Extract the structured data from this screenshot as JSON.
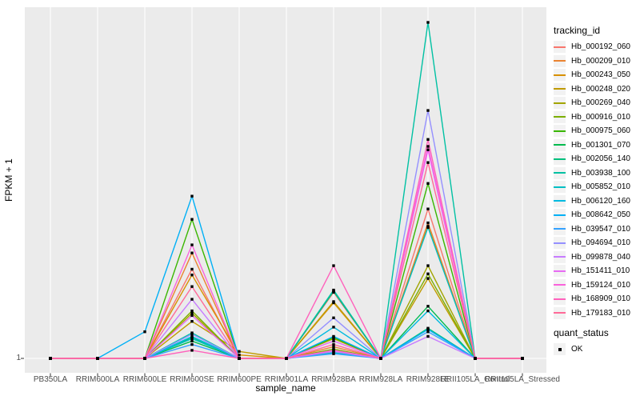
{
  "chart_data": {
    "type": "line",
    "title": "",
    "xlabel": "sample_name",
    "ylabel": "FPKM + 1",
    "y_ticks": [
      {
        "label": "1",
        "value": 1
      }
    ],
    "y_axis_range": [
      1,
      30
    ],
    "grid": "major vertical per category, horizontal at y=1",
    "legend_position": "right",
    "legend_titles": {
      "series": "tracking_id",
      "points": "quant_status"
    },
    "point_legend": [
      {
        "label": "OK",
        "color": "#000000"
      }
    ],
    "categories": [
      "PB350LA",
      "RRIM600LA",
      "RRIM600LE",
      "RRIM600SE",
      "RRIM600PE",
      "RRIM901LA",
      "RRIM928BA",
      "RRIM928LA",
      "RRIM928LE",
      "RRII105LA_Control",
      "RRII105LA_Stressed"
    ],
    "series": [
      {
        "name": "Hb_000192_060",
        "color": "#F8766D",
        "values": [
          1,
          1,
          1,
          8.7,
          1,
          1,
          6.7,
          1,
          13.9,
          1,
          1
        ]
      },
      {
        "name": "Hb_000209_010",
        "color": "#EA8331",
        "values": [
          1,
          1,
          1,
          10.1,
          1,
          1,
          2.0,
          1,
          12.7,
          1,
          1
        ]
      },
      {
        "name": "Hb_000243_050",
        "color": "#D89000",
        "values": [
          1,
          1,
          1,
          8.2,
          1.3,
          1,
          5.8,
          1,
          12.4,
          1,
          1
        ]
      },
      {
        "name": "Hb_000248_020",
        "color": "#C09B00",
        "values": [
          1,
          1,
          1,
          4.2,
          1.6,
          1,
          5.9,
          1,
          7.9,
          1,
          1
        ]
      },
      {
        "name": "Hb_000269_040",
        "color": "#A3A500",
        "values": [
          1,
          1,
          1,
          4.9,
          1,
          1,
          2.7,
          1,
          9.0,
          1,
          1
        ]
      },
      {
        "name": "Hb_000916_010",
        "color": "#7CAE00",
        "values": [
          1,
          1,
          1,
          5.1,
          1,
          1,
          1.8,
          1,
          8.3,
          1,
          1
        ]
      },
      {
        "name": "Hb_000975_060",
        "color": "#39B600",
        "values": [
          1,
          1,
          1,
          13.0,
          1,
          1,
          2.8,
          1,
          16.1,
          1,
          1
        ]
      },
      {
        "name": "Hb_001301_070",
        "color": "#00BB4E",
        "values": [
          1,
          1,
          1,
          2.5,
          1,
          1,
          6.8,
          1,
          5.5,
          1,
          1
        ]
      },
      {
        "name": "Hb_002056_140",
        "color": "#00BF7D",
        "values": [
          1,
          1,
          1,
          2.8,
          1,
          1,
          6.8,
          1,
          3.6,
          1,
          1
        ]
      },
      {
        "name": "Hb_003938_100",
        "color": "#00C1A3",
        "values": [
          1,
          1,
          1,
          3.2,
          1,
          1,
          6.9,
          1,
          30.0,
          1,
          1
        ]
      },
      {
        "name": "Hb_005852_010",
        "color": "#00BFC4",
        "values": [
          1,
          1,
          1,
          2.7,
          1,
          1,
          1.5,
          1,
          12.3,
          1,
          1
        ]
      },
      {
        "name": "Hb_006120_160",
        "color": "#00BAE0",
        "values": [
          1,
          1,
          1,
          2.9,
          1,
          1,
          3.7,
          1,
          5.1,
          1,
          1
        ]
      },
      {
        "name": "Hb_008642_050",
        "color": "#00B0F6",
        "values": [
          1,
          1,
          3.3,
          15.0,
          1,
          1,
          2.9,
          1,
          3.5,
          1,
          1
        ]
      },
      {
        "name": "Hb_039547_010",
        "color": "#35A2FF",
        "values": [
          1,
          1,
          1,
          2.2,
          1,
          1,
          1.4,
          1,
          3.3,
          1,
          1
        ]
      },
      {
        "name": "Hb_094694_010",
        "color": "#9590FF",
        "values": [
          1,
          1,
          1,
          3.1,
          1,
          1,
          4.5,
          1,
          22.4,
          1,
          1
        ]
      },
      {
        "name": "Hb_099878_040",
        "color": "#C77CFF",
        "values": [
          1,
          1,
          1,
          6.1,
          1,
          1,
          1.6,
          1,
          2.9,
          1,
          1
        ]
      },
      {
        "name": "Hb_151411_010",
        "color": "#E76BF3",
        "values": [
          1,
          1,
          1,
          4.7,
          1,
          1,
          2.5,
          1,
          19.0,
          1,
          1
        ]
      },
      {
        "name": "Hb_159124_010",
        "color": "#FA62DB",
        "values": [
          1,
          1,
          1,
          10.8,
          1,
          1,
          1.7,
          1,
          19.3,
          1,
          1
        ]
      },
      {
        "name": "Hb_168909_010",
        "color": "#FF62BC",
        "values": [
          1,
          1,
          1,
          1.7,
          1,
          1,
          9.0,
          1,
          19.9,
          1,
          1
        ]
      },
      {
        "name": "Hb_179183_010",
        "color": "#FF6A98",
        "values": [
          1,
          1,
          1,
          7.2,
          1,
          1,
          2.2,
          1,
          17.9,
          1,
          1
        ]
      }
    ]
  },
  "colors": {
    "plot_background": "#EBEBEB",
    "gridline": "#FFFFFF",
    "axis_tick": "#333333",
    "axis_text": "#4D4D4D",
    "point": "#000000",
    "legend_key_background": "#F2F2F2"
  }
}
